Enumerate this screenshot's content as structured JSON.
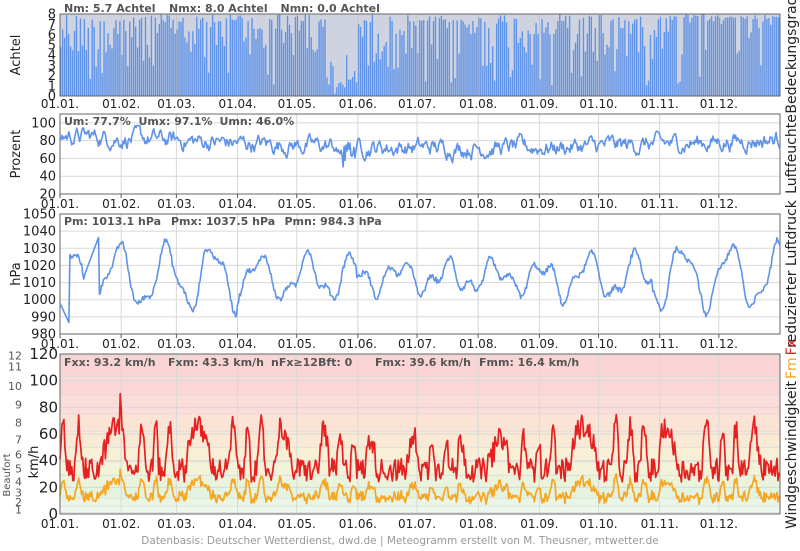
{
  "footer": {
    "text": "Datenbasis: Deutscher Wetterdienst, dwd.de  |  Meteogramm erstellt von M. Theusner, mtwetter.de"
  },
  "colors": {
    "cloud_clear": "#cfd3df",
    "cloud_cover": "#5f93e8",
    "humidity_line": "#5f93e8",
    "pressure_line": "#5f93e8",
    "gust_line": "#e62020",
    "mean_wind_line": "#f5a623",
    "grid": "#d8d8d8"
  },
  "chart_data": [
    {
      "id": "cloud",
      "type": "bar",
      "ylabel": "Achtel",
      "right_label": "Bedeckungsgrad",
      "stats": [
        "Nm: 5.7 Achtel",
        "Nmx: 8.0 Achtel",
        "Nmn: 0.0 Achtel"
      ],
      "ylim": [
        0,
        8
      ],
      "yticks": [
        0,
        1,
        2,
        3,
        4,
        5,
        6,
        7,
        8
      ],
      "xticks": [
        "01.01.",
        "01.02.",
        "01.03.",
        "01.04.",
        "01.05.",
        "01.06.",
        "01.07.",
        "01.08.",
        "01.09.",
        "01.10.",
        "01.11.",
        "01.12."
      ],
      "mean": 5.7,
      "max": 8.0,
      "min": 0.0,
      "grid": true
    },
    {
      "id": "humidity",
      "type": "line",
      "ylabel": "Prozent",
      "right_label": "Luftfeuchte",
      "stats": [
        "Um: 77.7%",
        "Umx: 97.1%",
        "Umn: 46.0%"
      ],
      "ylim": [
        20,
        110
      ],
      "yticks": [
        20,
        40,
        60,
        80,
        100
      ],
      "xticks": [
        "01.01.",
        "01.02.",
        "01.03.",
        "01.04.",
        "01.05.",
        "01.06.",
        "01.07.",
        "01.08.",
        "01.09.",
        "01.10.",
        "01.11.",
        "01.12."
      ],
      "mean": 77.7,
      "max": 97.1,
      "min": 46.0,
      "grid": true
    },
    {
      "id": "pressure",
      "type": "line",
      "ylabel": "hPa",
      "right_label": "reduzierter Luftdruck",
      "stats": [
        "Pm: 1013.1 hPa",
        "Pmx: 1037.5 hPa",
        "Pmn: 984.3 hPa"
      ],
      "ylim": [
        980,
        1050
      ],
      "yticks": [
        980,
        990,
        1000,
        1010,
        1020,
        1030,
        1040,
        1050
      ],
      "xticks": [
        "01.01.",
        "01.02.",
        "01.03.",
        "01.04.",
        "01.05.",
        "01.06.",
        "01.07.",
        "01.08.",
        "01.09.",
        "01.10.",
        "01.11.",
        "01.12."
      ],
      "mean": 1013.1,
      "max": 1037.5,
      "min": 984.3,
      "grid": true
    },
    {
      "id": "wind",
      "type": "line",
      "ylabel": "km/h",
      "left_label": "Beaufort",
      "right_label": "Windgeschwindigkeit",
      "right_label_fm": "Fm",
      "right_label_fx": "Fx",
      "stats": [
        "Fxx: 93.2 km/h",
        "Fxm: 43.3 km/h",
        "nFx≥12Bft: 0",
        "Fmx: 39.6 km/h",
        "Fmm: 16.4 km/h"
      ],
      "ylim": [
        0,
        120
      ],
      "yticks": [
        0,
        20,
        40,
        60,
        80,
        100,
        120
      ],
      "beaufort_ticks": [
        1,
        2,
        3,
        4,
        5,
        6,
        7,
        8,
        9,
        10,
        11,
        12
      ],
      "xticks": [
        "01.01.",
        "01.02.",
        "01.03.",
        "01.04.",
        "01.05.",
        "01.06.",
        "01.07.",
        "01.08.",
        "01.09.",
        "01.10.",
        "01.11.",
        "01.12."
      ],
      "series": [
        {
          "name": "Fx",
          "max": 93.2,
          "mean": 43.3
        },
        {
          "name": "Fm",
          "max": 39.6,
          "mean": 16.4
        }
      ],
      "grid": true
    }
  ]
}
